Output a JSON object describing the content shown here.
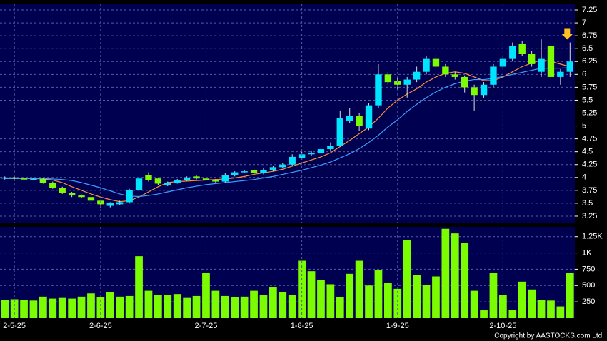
{
  "chart_data": [
    {
      "type": "candlestick",
      "up_color": "#00e5ff",
      "down_color": "#7cfc00",
      "grid": true,
      "ylim": [
        3.125,
        7.375
      ],
      "yticks": [
        3.25,
        3.5,
        3.75,
        4,
        4.25,
        4.5,
        4.75,
        5,
        5.25,
        5.5,
        5.75,
        6,
        6.25,
        6.5,
        6.75,
        7,
        7.25
      ],
      "open": [
        3.98,
        4.0,
        3.98,
        3.97,
        3.97,
        3.9,
        3.8,
        3.7,
        3.65,
        3.62,
        3.55,
        3.45,
        3.48,
        3.52,
        3.75,
        4.05,
        3.98,
        3.85,
        3.9,
        3.95,
        4.02,
        3.98,
        3.95,
        3.92,
        4.05,
        4.1,
        4.15,
        4.08,
        4.15,
        4.2,
        4.25,
        4.38,
        4.45,
        4.48,
        4.55,
        4.62,
        5.1,
        5.2,
        4.95,
        5.4,
        6.0,
        5.88,
        5.8,
        5.9,
        6.05,
        6.3,
        6.15,
        6.0,
        5.95,
        5.75,
        5.6,
        5.8,
        6.15,
        6.3,
        6.6,
        6.4,
        6.05,
        6.55,
        5.95,
        6.05
      ],
      "high": [
        4.02,
        4.02,
        4.0,
        3.99,
        3.98,
        3.92,
        3.82,
        3.72,
        3.67,
        3.64,
        3.57,
        3.52,
        3.55,
        3.78,
        4.05,
        4.1,
        4.0,
        3.92,
        3.97,
        4.02,
        4.05,
        4.0,
        3.97,
        4.08,
        4.12,
        4.15,
        4.18,
        4.18,
        4.22,
        4.28,
        4.45,
        4.5,
        4.52,
        4.58,
        4.68,
        5.3,
        5.35,
        5.25,
        5.45,
        6.2,
        6.05,
        5.95,
        5.95,
        6.15,
        6.35,
        6.4,
        6.2,
        6.05,
        5.98,
        5.8,
        5.85,
        6.2,
        6.35,
        6.62,
        6.65,
        6.45,
        6.68,
        6.6,
        6.1,
        6.62
      ],
      "low": [
        3.96,
        3.96,
        3.95,
        3.94,
        3.88,
        3.78,
        3.68,
        3.62,
        3.6,
        3.53,
        3.42,
        3.42,
        3.46,
        3.5,
        3.72,
        3.92,
        3.85,
        3.83,
        3.88,
        3.93,
        3.96,
        3.93,
        3.9,
        3.9,
        4.02,
        4.08,
        4.05,
        4.06,
        4.12,
        4.18,
        4.22,
        4.35,
        4.42,
        4.45,
        4.52,
        4.6,
        5.05,
        4.9,
        4.92,
        5.35,
        5.8,
        5.7,
        5.55,
        5.85,
        6.0,
        6.1,
        5.95,
        5.9,
        5.65,
        5.3,
        5.55,
        5.75,
        6.1,
        6.25,
        6.35,
        6.15,
        5.95,
        5.9,
        5.8,
        5.95
      ],
      "close": [
        4.0,
        3.98,
        3.97,
        3.97,
        3.9,
        3.8,
        3.7,
        3.65,
        3.62,
        3.55,
        3.48,
        3.5,
        3.52,
        3.75,
        3.98,
        3.95,
        3.88,
        3.9,
        3.95,
        4.0,
        3.98,
        3.95,
        3.92,
        4.05,
        4.1,
        4.12,
        4.08,
        4.15,
        4.2,
        4.25,
        4.4,
        4.45,
        4.48,
        4.55,
        4.62,
        5.15,
        5.2,
        5.0,
        5.4,
        6.0,
        5.85,
        5.8,
        5.9,
        6.05,
        6.3,
        6.15,
        6.0,
        5.95,
        5.75,
        5.6,
        5.8,
        6.15,
        6.3,
        6.55,
        6.4,
        6.2,
        6.3,
        5.95,
        6.05,
        6.25
      ],
      "moving_averages": [
        {
          "color": "#ff8c3a",
          "values": [
            3.98,
            3.98,
            3.98,
            3.98,
            3.97,
            3.95,
            3.9,
            3.82,
            3.75,
            3.68,
            3.62,
            3.57,
            3.53,
            3.55,
            3.62,
            3.72,
            3.82,
            3.9,
            3.92,
            3.93,
            3.94,
            3.95,
            3.96,
            3.97,
            3.99,
            4.02,
            4.06,
            4.09,
            4.12,
            4.16,
            4.22,
            4.28,
            4.34,
            4.4,
            4.48,
            4.6,
            4.72,
            4.85,
            4.98,
            5.15,
            5.35,
            5.5,
            5.62,
            5.72,
            5.85,
            5.95,
            6.02,
            6.05,
            6.02,
            5.95,
            5.88,
            5.88,
            5.95,
            6.05,
            6.15,
            6.22,
            6.28,
            6.25,
            6.2,
            6.15
          ]
        },
        {
          "color": "#3aa0ff",
          "values": [
            3.98,
            3.98,
            3.98,
            3.98,
            3.98,
            3.97,
            3.96,
            3.94,
            3.9,
            3.85,
            3.8,
            3.74,
            3.68,
            3.64,
            3.63,
            3.65,
            3.68,
            3.72,
            3.76,
            3.8,
            3.83,
            3.86,
            3.88,
            3.9,
            3.92,
            3.94,
            3.96,
            3.99,
            4.02,
            4.06,
            4.1,
            4.14,
            4.19,
            4.24,
            4.3,
            4.38,
            4.46,
            4.56,
            4.68,
            4.82,
            4.98,
            5.12,
            5.28,
            5.42,
            5.55,
            5.66,
            5.75,
            5.82,
            5.87,
            5.9,
            5.9,
            5.92,
            5.96,
            6.0,
            6.04,
            6.08,
            6.12,
            6.12,
            6.12,
            6.13
          ]
        }
      ]
    },
    {
      "type": "bar",
      "color": "#7cfc00",
      "grid": true,
      "categories": [
        null,
        "2-5-25",
        null,
        null,
        null,
        null,
        null,
        null,
        null,
        null,
        "2-6-25",
        null,
        null,
        null,
        null,
        null,
        null,
        null,
        null,
        null,
        null,
        "2-7-25",
        null,
        null,
        null,
        null,
        null,
        null,
        null,
        null,
        null,
        "1-8-25",
        null,
        null,
        null,
        null,
        null,
        null,
        null,
        null,
        null,
        "1-9-25",
        null,
        null,
        null,
        null,
        null,
        null,
        null,
        null,
        null,
        null,
        "2-10-25",
        null,
        null,
        null,
        null,
        null,
        null,
        null
      ],
      "values": [
        280,
        290,
        280,
        270,
        330,
        300,
        310,
        300,
        330,
        380,
        320,
        400,
        330,
        340,
        950,
        420,
        360,
        360,
        370,
        310,
        340,
        700,
        420,
        340,
        320,
        330,
        420,
        350,
        470,
        400,
        360,
        880,
        720,
        580,
        520,
        320,
        680,
        880,
        500,
        740,
        540,
        450,
        1200,
        660,
        510,
        640,
        1370,
        1300,
        1150,
        420,
        120,
        700,
        360,
        120,
        560,
        440,
        280,
        270,
        180,
        700
      ],
      "ylim": [
        0,
        1400
      ],
      "yticks": [
        250,
        500,
        750,
        {
          "value": 1000,
          "label": "1K"
        },
        {
          "value": 1250,
          "label": "1.25K"
        }
      ]
    }
  ],
  "footer": "Copyright by AASTOCKS.com Ltd."
}
